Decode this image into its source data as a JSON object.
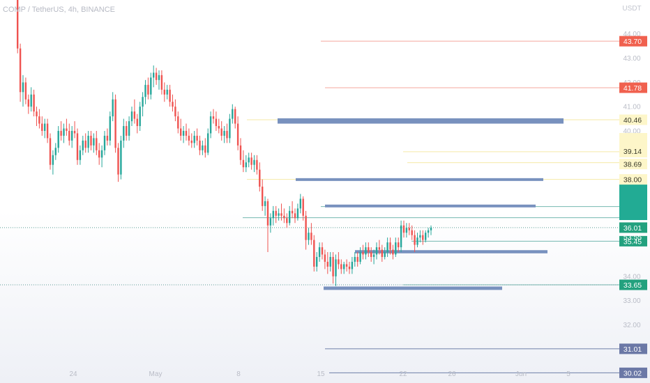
{
  "header": {
    "title": "COMP / TetherUS, 4h, BINANCE"
  },
  "colors": {
    "up": "#26a69a",
    "down": "#ef5350",
    "zone": "#7891be",
    "red_line": "#f4a79d",
    "yellow_line": "#f5e9a6",
    "teal_line": "#74b8b0",
    "navy_line": "#6e7fa8",
    "current_line": "#5c9d94",
    "tag_red": "#f0614f",
    "tag_yellow": "#fdf6c9",
    "tag_teal": "#23a17e",
    "tag_navy": "#6b78a6",
    "axis_text": "#b9bcc6"
  },
  "chart_data": {
    "type": "candlestick",
    "title": "COMP / TetherUS, 4h, BINANCE",
    "y_unit": "USDT",
    "y_range": [
      29.6,
      45.4
    ],
    "x_tick_labels": [
      "24",
      "May",
      "8",
      "15",
      "22",
      "26",
      "Jun",
      "5"
    ],
    "y_tick_labels": [
      "44.00",
      "43.00",
      "42.00",
      "41.00",
      "40.00",
      "34.00",
      "33.00",
      "32.00"
    ],
    "candles": [
      {
        "o": 45.4,
        "h": 45.7,
        "l": 43.2,
        "c": 43.4
      },
      {
        "o": 43.4,
        "h": 43.6,
        "l": 41.2,
        "c": 41.6
      },
      {
        "o": 41.6,
        "h": 42.3,
        "l": 41.0,
        "c": 42.0
      },
      {
        "o": 42.0,
        "h": 42.2,
        "l": 41.1,
        "c": 41.3
      },
      {
        "o": 41.3,
        "h": 41.5,
        "l": 40.7,
        "c": 41.0
      },
      {
        "o": 41.0,
        "h": 41.8,
        "l": 40.8,
        "c": 41.5
      },
      {
        "o": 41.5,
        "h": 41.7,
        "l": 40.6,
        "c": 40.8
      },
      {
        "o": 40.8,
        "h": 41.0,
        "l": 40.2,
        "c": 40.6
      },
      {
        "o": 40.6,
        "h": 40.9,
        "l": 40.1,
        "c": 40.3
      },
      {
        "o": 40.3,
        "h": 40.6,
        "l": 39.8,
        "c": 40.0
      },
      {
        "o": 40.0,
        "h": 40.5,
        "l": 39.7,
        "c": 40.3
      },
      {
        "o": 40.3,
        "h": 40.5,
        "l": 39.5,
        "c": 39.7
      },
      {
        "o": 39.7,
        "h": 39.9,
        "l": 38.4,
        "c": 38.6
      },
      {
        "o": 38.6,
        "h": 39.2,
        "l": 38.2,
        "c": 39.0
      },
      {
        "o": 39.0,
        "h": 39.5,
        "l": 38.8,
        "c": 39.3
      },
      {
        "o": 39.3,
        "h": 40.2,
        "l": 39.1,
        "c": 40.0
      },
      {
        "o": 40.0,
        "h": 40.4,
        "l": 39.6,
        "c": 39.8
      },
      {
        "o": 39.8,
        "h": 40.3,
        "l": 39.5,
        "c": 40.1
      },
      {
        "o": 40.1,
        "h": 40.5,
        "l": 39.8,
        "c": 40.0
      },
      {
        "o": 40.0,
        "h": 40.3,
        "l": 39.4,
        "c": 39.6
      },
      {
        "o": 39.6,
        "h": 40.2,
        "l": 39.3,
        "c": 40.0
      },
      {
        "o": 40.0,
        "h": 40.4,
        "l": 39.7,
        "c": 39.9
      },
      {
        "o": 39.9,
        "h": 40.1,
        "l": 38.6,
        "c": 38.8
      },
      {
        "o": 38.8,
        "h": 39.4,
        "l": 38.6,
        "c": 39.2
      },
      {
        "o": 39.2,
        "h": 39.8,
        "l": 39.0,
        "c": 39.6
      },
      {
        "o": 39.6,
        "h": 39.9,
        "l": 39.1,
        "c": 39.3
      },
      {
        "o": 39.3,
        "h": 40.0,
        "l": 39.1,
        "c": 39.8
      },
      {
        "o": 39.8,
        "h": 40.0,
        "l": 39.2,
        "c": 39.4
      },
      {
        "o": 39.4,
        "h": 39.9,
        "l": 39.1,
        "c": 39.7
      },
      {
        "o": 39.7,
        "h": 40.0,
        "l": 39.0,
        "c": 39.2
      },
      {
        "o": 39.2,
        "h": 39.5,
        "l": 38.6,
        "c": 38.9
      },
      {
        "o": 38.9,
        "h": 39.4,
        "l": 38.5,
        "c": 39.2
      },
      {
        "o": 39.2,
        "h": 40.0,
        "l": 39.0,
        "c": 39.8
      },
      {
        "o": 39.8,
        "h": 40.1,
        "l": 39.4,
        "c": 39.6
      },
      {
        "o": 39.6,
        "h": 40.8,
        "l": 39.4,
        "c": 40.6
      },
      {
        "o": 40.6,
        "h": 41.6,
        "l": 40.4,
        "c": 41.3
      },
      {
        "o": 41.3,
        "h": 41.5,
        "l": 39.1,
        "c": 39.3
      },
      {
        "o": 39.3,
        "h": 39.5,
        "l": 37.9,
        "c": 38.2
      },
      {
        "o": 38.2,
        "h": 39.8,
        "l": 38.0,
        "c": 39.6
      },
      {
        "o": 39.6,
        "h": 40.5,
        "l": 39.3,
        "c": 40.2
      },
      {
        "o": 40.2,
        "h": 40.4,
        "l": 39.6,
        "c": 39.8
      },
      {
        "o": 39.8,
        "h": 40.6,
        "l": 39.6,
        "c": 40.4
      },
      {
        "o": 40.4,
        "h": 41.0,
        "l": 40.2,
        "c": 40.8
      },
      {
        "o": 40.8,
        "h": 41.3,
        "l": 40.3,
        "c": 40.5
      },
      {
        "o": 40.5,
        "h": 40.7,
        "l": 39.9,
        "c": 40.2
      },
      {
        "o": 40.2,
        "h": 41.2,
        "l": 40.0,
        "c": 41.0
      },
      {
        "o": 41.0,
        "h": 41.6,
        "l": 40.6,
        "c": 41.4
      },
      {
        "o": 41.4,
        "h": 42.1,
        "l": 41.1,
        "c": 41.9
      },
      {
        "o": 41.9,
        "h": 42.2,
        "l": 41.3,
        "c": 41.5
      },
      {
        "o": 41.5,
        "h": 42.4,
        "l": 41.3,
        "c": 42.2
      },
      {
        "o": 42.2,
        "h": 42.7,
        "l": 41.8,
        "c": 42.4
      },
      {
        "o": 42.4,
        "h": 42.6,
        "l": 41.9,
        "c": 42.1
      },
      {
        "o": 42.1,
        "h": 42.5,
        "l": 41.7,
        "c": 42.3
      },
      {
        "o": 42.3,
        "h": 42.5,
        "l": 41.5,
        "c": 41.7
      },
      {
        "o": 41.7,
        "h": 42.0,
        "l": 41.2,
        "c": 41.5
      },
      {
        "o": 41.5,
        "h": 41.9,
        "l": 41.3,
        "c": 41.7
      },
      {
        "o": 41.7,
        "h": 41.9,
        "l": 41.0,
        "c": 41.2
      },
      {
        "o": 41.2,
        "h": 41.5,
        "l": 40.8,
        "c": 41.0
      },
      {
        "o": 41.0,
        "h": 41.3,
        "l": 40.4,
        "c": 40.6
      },
      {
        "o": 40.6,
        "h": 40.8,
        "l": 39.9,
        "c": 40.1
      },
      {
        "o": 40.1,
        "h": 40.5,
        "l": 39.6,
        "c": 39.8
      },
      {
        "o": 39.8,
        "h": 40.2,
        "l": 39.5,
        "c": 40.0
      },
      {
        "o": 40.0,
        "h": 40.3,
        "l": 39.6,
        "c": 39.8
      },
      {
        "o": 39.8,
        "h": 40.1,
        "l": 39.4,
        "c": 39.6
      },
      {
        "o": 39.6,
        "h": 39.9,
        "l": 39.3,
        "c": 39.5
      },
      {
        "o": 39.5,
        "h": 40.0,
        "l": 39.3,
        "c": 39.8
      },
      {
        "o": 39.8,
        "h": 40.1,
        "l": 39.4,
        "c": 39.6
      },
      {
        "o": 39.6,
        "h": 39.8,
        "l": 39.0,
        "c": 39.2
      },
      {
        "o": 39.2,
        "h": 39.6,
        "l": 39.0,
        "c": 39.4
      },
      {
        "o": 39.4,
        "h": 39.7,
        "l": 38.9,
        "c": 39.1
      },
      {
        "o": 39.1,
        "h": 40.1,
        "l": 39.0,
        "c": 39.9
      },
      {
        "o": 39.9,
        "h": 40.8,
        "l": 39.7,
        "c": 40.6
      },
      {
        "o": 40.6,
        "h": 40.9,
        "l": 40.3,
        "c": 40.5
      },
      {
        "o": 40.5,
        "h": 40.8,
        "l": 40.0,
        "c": 40.2
      },
      {
        "o": 40.2,
        "h": 40.5,
        "l": 39.9,
        "c": 40.1
      },
      {
        "o": 40.1,
        "h": 40.4,
        "l": 39.6,
        "c": 39.8
      },
      {
        "o": 39.8,
        "h": 40.2,
        "l": 39.5,
        "c": 40.0
      },
      {
        "o": 40.0,
        "h": 40.3,
        "l": 39.5,
        "c": 39.7
      },
      {
        "o": 39.7,
        "h": 40.7,
        "l": 39.5,
        "c": 40.5
      },
      {
        "o": 40.5,
        "h": 41.1,
        "l": 40.3,
        "c": 40.9
      },
      {
        "o": 40.9,
        "h": 41.0,
        "l": 40.1,
        "c": 40.3
      },
      {
        "o": 40.3,
        "h": 40.6,
        "l": 39.2,
        "c": 39.4
      },
      {
        "o": 39.4,
        "h": 39.7,
        "l": 38.6,
        "c": 38.8
      },
      {
        "o": 38.8,
        "h": 39.2,
        "l": 38.3,
        "c": 38.5
      },
      {
        "o": 38.5,
        "h": 39.0,
        "l": 38.3,
        "c": 38.7
      },
      {
        "o": 38.7,
        "h": 39.1,
        "l": 38.5,
        "c": 38.9
      },
      {
        "o": 38.9,
        "h": 39.1,
        "l": 38.4,
        "c": 38.6
      },
      {
        "o": 38.6,
        "h": 39.0,
        "l": 38.3,
        "c": 38.8
      },
      {
        "o": 38.8,
        "h": 39.0,
        "l": 38.2,
        "c": 38.4
      },
      {
        "o": 38.4,
        "h": 38.7,
        "l": 37.5,
        "c": 37.7
      },
      {
        "o": 37.7,
        "h": 38.0,
        "l": 36.7,
        "c": 36.9
      },
      {
        "o": 36.9,
        "h": 37.3,
        "l": 36.5,
        "c": 37.1
      },
      {
        "o": 37.1,
        "h": 37.2,
        "l": 35.0,
        "c": 36.1
      },
      {
        "o": 36.1,
        "h": 36.6,
        "l": 35.8,
        "c": 36.4
      },
      {
        "o": 36.4,
        "h": 36.9,
        "l": 36.1,
        "c": 36.7
      },
      {
        "o": 36.7,
        "h": 36.9,
        "l": 36.2,
        "c": 36.5
      },
      {
        "o": 36.5,
        "h": 36.8,
        "l": 36.3,
        "c": 36.6
      },
      {
        "o": 36.6,
        "h": 37.0,
        "l": 36.3,
        "c": 36.5
      },
      {
        "o": 36.5,
        "h": 36.8,
        "l": 36.2,
        "c": 36.4
      },
      {
        "o": 36.4,
        "h": 36.6,
        "l": 36.0,
        "c": 36.2
      },
      {
        "o": 36.2,
        "h": 36.9,
        "l": 36.1,
        "c": 36.7
      },
      {
        "o": 36.7,
        "h": 37.1,
        "l": 36.4,
        "c": 36.6
      },
      {
        "o": 36.6,
        "h": 36.8,
        "l": 36.2,
        "c": 36.4
      },
      {
        "o": 36.4,
        "h": 37.0,
        "l": 36.3,
        "c": 36.8
      },
      {
        "o": 36.8,
        "h": 37.4,
        "l": 36.6,
        "c": 37.2
      },
      {
        "o": 37.2,
        "h": 37.3,
        "l": 36.3,
        "c": 36.5
      },
      {
        "o": 36.5,
        "h": 36.7,
        "l": 35.1,
        "c": 35.5
      },
      {
        "o": 35.5,
        "h": 36.0,
        "l": 35.3,
        "c": 35.8
      },
      {
        "o": 35.8,
        "h": 36.2,
        "l": 35.3,
        "c": 35.5
      },
      {
        "o": 35.5,
        "h": 35.7,
        "l": 34.2,
        "c": 34.4
      },
      {
        "o": 34.4,
        "h": 35.0,
        "l": 34.2,
        "c": 34.8
      },
      {
        "o": 34.8,
        "h": 35.4,
        "l": 34.6,
        "c": 35.2
      },
      {
        "o": 35.2,
        "h": 35.4,
        "l": 34.7,
        "c": 34.9
      },
      {
        "o": 34.9,
        "h": 35.1,
        "l": 34.3,
        "c": 34.6
      },
      {
        "o": 34.6,
        "h": 35.0,
        "l": 34.1,
        "c": 34.4
      },
      {
        "o": 34.4,
        "h": 35.0,
        "l": 34.2,
        "c": 34.8
      },
      {
        "o": 34.8,
        "h": 35.0,
        "l": 33.7,
        "c": 34.0
      },
      {
        "o": 34.0,
        "h": 34.9,
        "l": 33.6,
        "c": 34.7
      },
      {
        "o": 34.7,
        "h": 35.0,
        "l": 34.3,
        "c": 34.5
      },
      {
        "o": 34.5,
        "h": 34.7,
        "l": 34.1,
        "c": 34.3
      },
      {
        "o": 34.3,
        "h": 34.6,
        "l": 34.1,
        "c": 34.5
      },
      {
        "o": 34.5,
        "h": 34.7,
        "l": 34.2,
        "c": 34.4
      },
      {
        "o": 34.4,
        "h": 34.6,
        "l": 34.1,
        "c": 34.3
      },
      {
        "o": 34.3,
        "h": 34.8,
        "l": 34.1,
        "c": 34.6
      },
      {
        "o": 34.6,
        "h": 35.0,
        "l": 34.4,
        "c": 34.8
      },
      {
        "o": 34.8,
        "h": 35.0,
        "l": 34.4,
        "c": 34.6
      },
      {
        "o": 34.6,
        "h": 35.2,
        "l": 34.5,
        "c": 35.0
      },
      {
        "o": 35.0,
        "h": 35.3,
        "l": 34.7,
        "c": 34.9
      },
      {
        "o": 34.9,
        "h": 35.4,
        "l": 34.7,
        "c": 35.2
      },
      {
        "o": 35.2,
        "h": 35.4,
        "l": 34.8,
        "c": 35.0
      },
      {
        "o": 35.0,
        "h": 35.2,
        "l": 34.6,
        "c": 34.8
      },
      {
        "o": 34.8,
        "h": 35.1,
        "l": 34.5,
        "c": 34.9
      },
      {
        "o": 34.9,
        "h": 35.4,
        "l": 34.7,
        "c": 35.2
      },
      {
        "o": 35.2,
        "h": 35.5,
        "l": 34.9,
        "c": 35.1
      },
      {
        "o": 35.1,
        "h": 35.3,
        "l": 34.6,
        "c": 34.8
      },
      {
        "o": 34.8,
        "h": 35.2,
        "l": 34.7,
        "c": 35.0
      },
      {
        "o": 35.0,
        "h": 35.6,
        "l": 34.8,
        "c": 35.4
      },
      {
        "o": 35.4,
        "h": 35.6,
        "l": 34.9,
        "c": 35.1
      },
      {
        "o": 35.1,
        "h": 35.3,
        "l": 34.7,
        "c": 34.9
      },
      {
        "o": 34.9,
        "h": 35.6,
        "l": 34.8,
        "c": 35.4
      },
      {
        "o": 35.4,
        "h": 35.6,
        "l": 35.0,
        "c": 35.2
      },
      {
        "o": 35.2,
        "h": 36.3,
        "l": 35.0,
        "c": 36.1
      },
      {
        "o": 36.1,
        "h": 36.3,
        "l": 35.6,
        "c": 35.8
      },
      {
        "o": 35.8,
        "h": 36.2,
        "l": 35.6,
        "c": 36.0
      },
      {
        "o": 36.0,
        "h": 36.2,
        "l": 35.7,
        "c": 35.9
      },
      {
        "o": 35.9,
        "h": 36.1,
        "l": 35.5,
        "c": 35.7
      },
      {
        "o": 35.7,
        "h": 35.9,
        "l": 35.0,
        "c": 35.3
      },
      {
        "o": 35.3,
        "h": 35.8,
        "l": 35.2,
        "c": 35.6
      },
      {
        "o": 35.6,
        "h": 35.9,
        "l": 35.4,
        "c": 35.7
      },
      {
        "o": 35.7,
        "h": 35.9,
        "l": 35.3,
        "c": 35.5
      },
      {
        "o": 35.5,
        "h": 35.9,
        "l": 35.4,
        "c": 35.8
      },
      {
        "o": 35.8,
        "h": 36.0,
        "l": 35.6,
        "c": 35.9
      },
      {
        "o": 35.9,
        "h": 36.1,
        "l": 35.7,
        "c": 36.01
      }
    ],
    "lines": [
      {
        "value": 43.7,
        "from": "15",
        "color_key": "red_line"
      },
      {
        "value": 41.78,
        "from": "15",
        "color_key": "red_line"
      },
      {
        "value": 40.46,
        "from": "8",
        "color_key": "yellow_line"
      },
      {
        "value": 39.14,
        "from": "22",
        "color_key": "yellow_line"
      },
      {
        "value": 38.69,
        "from": "22",
        "color_key": "yellow_line"
      },
      {
        "value": 38.0,
        "from": "8",
        "color_key": "yellow_line"
      },
      {
        "value": 36.88,
        "from": "15",
        "color_key": "teal_line"
      },
      {
        "value": 36.42,
        "from": "8",
        "color_key": "teal_line"
      },
      {
        "value": 35.45,
        "from": "22",
        "color_key": "teal_line"
      },
      {
        "value": 33.65,
        "from": "22",
        "color_key": "teal_line"
      },
      {
        "value": 31.01,
        "from": "15",
        "color_key": "navy_line"
      },
      {
        "value": 30.02,
        "from": "15",
        "color_key": "navy_line"
      }
    ],
    "zones": [
      {
        "top": 40.52,
        "bottom": 40.3
      },
      {
        "top": 38.05,
        "bottom": 37.95
      },
      {
        "top": 36.96,
        "bottom": 36.88
      },
      {
        "top": 35.08,
        "bottom": 34.95
      },
      {
        "top": 33.58,
        "bottom": 33.44
      }
    ],
    "current_price": 36.01,
    "price_tags": [
      {
        "value": 43.7,
        "label": "43.70",
        "style": "red"
      },
      {
        "value": 41.78,
        "label": "41.78",
        "style": "red"
      },
      {
        "value": 40.46,
        "label": "40.46",
        "style": "yellow"
      },
      {
        "value": 39.14,
        "label": "39.14",
        "style": "yellow"
      },
      {
        "value": 38.69,
        "label": "38.69",
        "style": "yellow"
      },
      {
        "value": 38.0,
        "label": "38.00",
        "style": "yellow"
      },
      {
        "value": 36.01,
        "label": "36.01",
        "style": "teal"
      },
      {
        "value": 35.45,
        "label": "35.45",
        "style": "teal"
      },
      {
        "value": 33.65,
        "label": "33.65",
        "style": "teal"
      },
      {
        "value": 31.01,
        "label": "31.01",
        "style": "navy"
      },
      {
        "value": 30.02,
        "label": "30.02",
        "style": "navy"
      }
    ],
    "countdown": "53:55"
  }
}
